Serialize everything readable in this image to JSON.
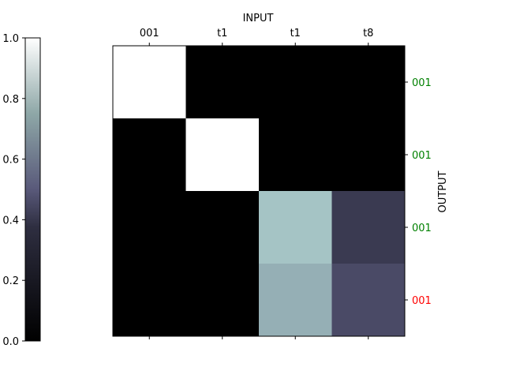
{
  "chart_data": {
    "type": "heatmap",
    "title": "",
    "xlabel": "INPUT",
    "ylabel": "OUTPUT",
    "x_tick_labels": [
      "001",
      "t1",
      "t1",
      "t8"
    ],
    "y_tick_labels": [
      {
        "label": "001",
        "color": "#008000"
      },
      {
        "label": "001",
        "color": "#008000"
      },
      {
        "label": "001",
        "color": "#008000"
      },
      {
        "label": "001",
        "color": "#ff0000"
      }
    ],
    "values": [
      [
        1.0,
        0.0,
        0.0,
        0.0
      ],
      [
        0.0,
        1.0,
        0.0,
        0.0
      ],
      [
        0.0,
        0.0,
        0.74,
        0.26
      ],
      [
        0.0,
        0.0,
        0.67,
        0.33
      ]
    ],
    "colormap": "bone",
    "colorbar": {
      "range": [
        0.0,
        1.0
      ],
      "ticks": [
        0.0,
        0.2,
        0.4,
        0.6,
        0.8,
        1.0
      ],
      "tick_labels": [
        "0.0",
        "0.2",
        "0.4",
        "0.6",
        "0.8",
        "1.0"
      ],
      "placement": "left"
    },
    "x_axis_position": "top",
    "y_axis_position": "right"
  }
}
